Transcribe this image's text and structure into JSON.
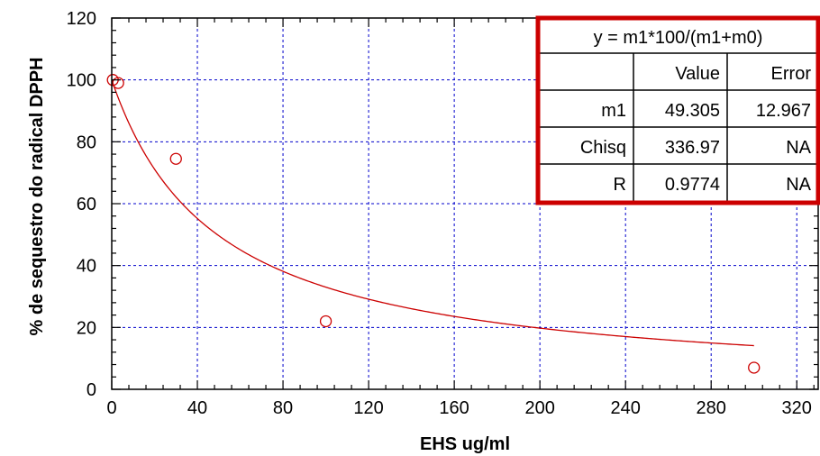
{
  "chart_data": {
    "type": "scatter",
    "xlabel": "EHS ug/ml",
    "ylabel": "% de sequestro do radical DPPH",
    "xlim": [
      0,
      330
    ],
    "ylim": [
      0,
      120
    ],
    "x_ticks": [
      0,
      40,
      80,
      120,
      160,
      200,
      240,
      280,
      320
    ],
    "y_ticks": [
      0,
      20,
      40,
      60,
      80,
      100,
      120
    ],
    "grid": true,
    "series": [
      {
        "kind": "points",
        "marker": "open-circle",
        "color": "#cc0000",
        "points": [
          {
            "x": 0.5,
            "y": 100.0
          },
          {
            "x": 3,
            "y": 99.0
          },
          {
            "x": 30,
            "y": 74.5
          },
          {
            "x": 100,
            "y": 22.0
          },
          {
            "x": 300,
            "y": 7.0
          }
        ]
      },
      {
        "kind": "fit-curve",
        "color": "#cc0000",
        "equation": "y = m1*100/(m1+m0)",
        "m1": 49.305,
        "x_range": [
          0,
          300
        ]
      }
    ],
    "fit_table": {
      "equation": "y = m1*100/(m1+m0)",
      "header": [
        "",
        "Value",
        "Error"
      ],
      "rows": [
        [
          "m1",
          "49.305",
          "12.967"
        ],
        [
          "Chisq",
          "336.97",
          "NA"
        ],
        [
          "R",
          "0.9774",
          "NA"
        ]
      ],
      "border_color": "#cc0000"
    }
  }
}
